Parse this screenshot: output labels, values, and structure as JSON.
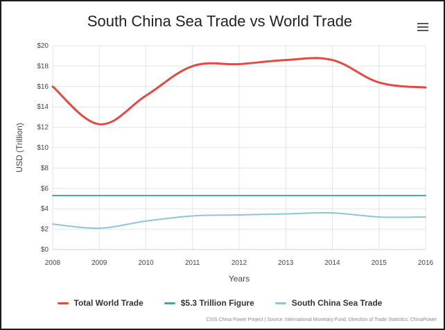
{
  "menu_icon": "hamburger-menu-icon",
  "credits": "CSIS China Power Project | Source: International Monetary Fund, Direction of Trade Statistics, ChinaPower",
  "chart_data": {
    "type": "line",
    "title": "South China Sea Trade vs World Trade",
    "xlabel": "Years",
    "ylabel": "USD (Trillion)",
    "x": [
      2008,
      2009,
      2010,
      2011,
      2012,
      2013,
      2014,
      2015,
      2016
    ],
    "ylim": [
      0,
      20
    ],
    "yticks": [
      0,
      2,
      4,
      6,
      8,
      10,
      12,
      14,
      16,
      18,
      20
    ],
    "ytick_labels": [
      "$0",
      "$2",
      "$4",
      "$6",
      "$8",
      "$10",
      "$12",
      "$14",
      "$16",
      "$18",
      "$20"
    ],
    "grid": true,
    "legend_position": "bottom",
    "series": [
      {
        "name": "Total World Trade",
        "color": "#e8473f",
        "values": [
          16.0,
          12.3,
          15.1,
          18.0,
          18.2,
          18.6,
          18.6,
          16.4,
          15.9
        ]
      },
      {
        "name": "$5.3 Trillion Figure",
        "color": "#4f9fa6",
        "values": [
          5.3,
          5.3,
          5.3,
          5.3,
          5.3,
          5.3,
          5.3,
          5.3,
          5.3
        ]
      },
      {
        "name": "South China Sea Trade",
        "color": "#8ec5d6",
        "values": [
          2.5,
          2.1,
          2.8,
          3.3,
          3.4,
          3.5,
          3.6,
          3.2,
          3.2
        ]
      }
    ]
  }
}
